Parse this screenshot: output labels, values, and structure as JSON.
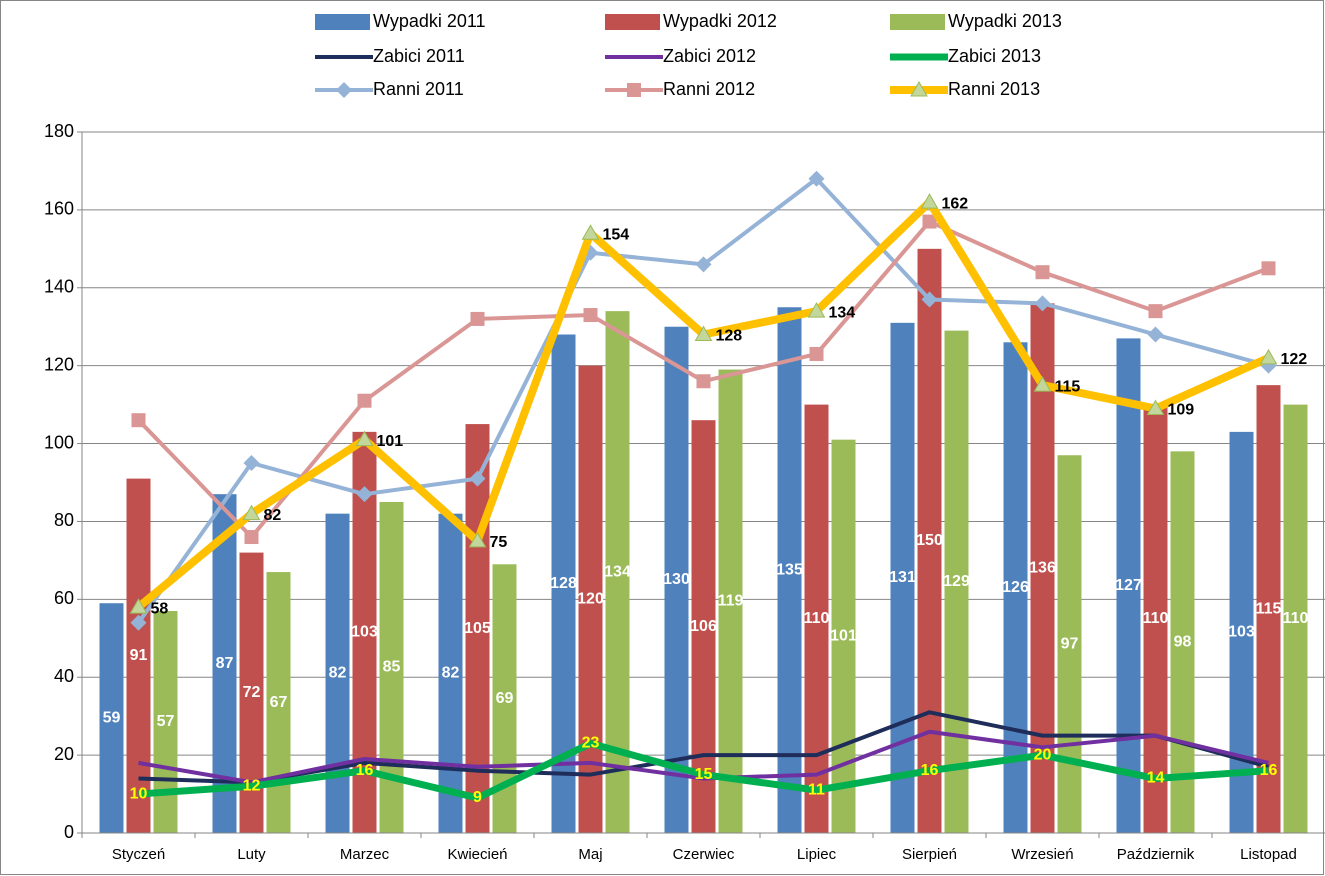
{
  "chart_data": {
    "type": "bar",
    "categories": [
      "Styczeń",
      "Luty",
      "Marzec",
      "Kwiecień",
      "Maj",
      "Czerwiec",
      "Lipiec",
      "Sierpień",
      "Wrzesień",
      "Październik",
      "Listopad"
    ],
    "series": [
      {
        "name": "Wypadki 2011",
        "type": "bar",
        "color": "#4f81bd",
        "label_color": "#ffffff",
        "values": [
          59,
          87,
          82,
          82,
          128,
          130,
          135,
          131,
          126,
          127,
          103
        ]
      },
      {
        "name": "Wypadki 2012",
        "type": "bar",
        "color": "#c0504d",
        "label_color": "#ffffff",
        "values": [
          91,
          72,
          103,
          105,
          120,
          106,
          110,
          150,
          136,
          110,
          115
        ]
      },
      {
        "name": "Wypadki 2013",
        "type": "bar",
        "color": "#9bbb59",
        "label_color": "#ffffff",
        "values": [
          57,
          67,
          85,
          69,
          134,
          119,
          101,
          129,
          97,
          98,
          110
        ]
      },
      {
        "name": "Zabici 2011",
        "type": "line",
        "color": "#1f2d5a",
        "values": [
          14,
          13,
          18,
          16,
          15,
          20,
          20,
          31,
          25,
          25,
          17
        ]
      },
      {
        "name": "Zabici 2012",
        "type": "line",
        "color": "#7030a0",
        "values": [
          18,
          13,
          19,
          17,
          18,
          14,
          15,
          26,
          22,
          25,
          18
        ]
      },
      {
        "name": "Zabici 2013",
        "type": "line",
        "color": "#00b050",
        "label_color": "#ffff00",
        "values": [
          10,
          12,
          16,
          9,
          23,
          15,
          11,
          16,
          20,
          14,
          16
        ]
      },
      {
        "name": "Ranni 2011",
        "type": "line",
        "color": "#95b3d7",
        "marker": "diamond",
        "values": [
          54,
          95,
          87,
          91,
          149,
          146,
          168,
          137,
          136,
          128,
          120
        ]
      },
      {
        "name": "Ranni 2012",
        "type": "line",
        "color": "#d99694",
        "marker": "square",
        "values": [
          106,
          76,
          111,
          132,
          133,
          116,
          123,
          157,
          144,
          134,
          145
        ]
      },
      {
        "name": "Ranni 2013",
        "type": "line",
        "color": "#ffc000",
        "marker": "triangle",
        "label_color": "#000000",
        "values": [
          58,
          82,
          101,
          75,
          154,
          128,
          134,
          162,
          115,
          109,
          122
        ]
      }
    ],
    "ylim": [
      0,
      180
    ],
    "yticks": [
      0,
      20,
      40,
      60,
      80,
      100,
      120,
      140,
      160,
      180
    ],
    "grid": true,
    "legend": "top"
  }
}
